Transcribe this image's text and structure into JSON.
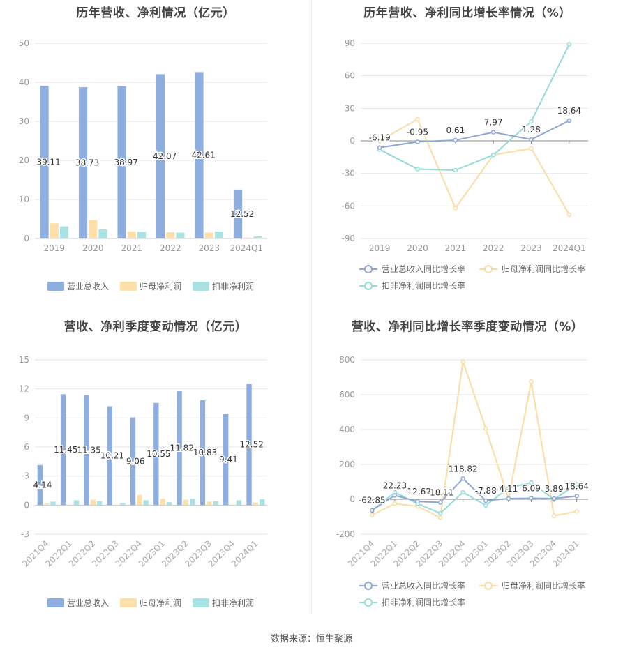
{
  "footer": "数据来源：恒生聚源",
  "legend_bars": [
    "营业总收入",
    "归母净利润",
    "扣非净利润"
  ],
  "legend_lines": [
    "营业总收入同比增长率",
    "归母净利润同比增长率",
    "扣非净利润同比增长率"
  ],
  "colors": {
    "revenue": "#8eaedf",
    "net_profit": "#fddfaa",
    "deducted": "#a8e2e2",
    "rev_line": "#8ea6d6",
    "np_line": "#fbdca2",
    "ded_line": "#93dcd9"
  },
  "chart_data": [
    {
      "type": "bar",
      "title": "历年营收、净利情况（亿元）",
      "categories": [
        "2019",
        "2020",
        "2021",
        "2022",
        "2023",
        "2024Q1"
      ],
      "ylim": [
        0,
        50
      ],
      "yticks": [
        0,
        10,
        20,
        30,
        40,
        50
      ],
      "series": [
        {
          "name": "营业总收入",
          "values": [
            39.11,
            38.73,
            38.97,
            42.07,
            42.61,
            12.52
          ],
          "labels": [
            "39.11",
            "38.73",
            "38.97",
            "42.07",
            "42.61",
            "12.52"
          ]
        },
        {
          "name": "归母净利润",
          "values": [
            3.9,
            4.7,
            1.8,
            1.6,
            1.5,
            0.25
          ]
        },
        {
          "name": "扣非净利润",
          "values": [
            3.1,
            2.3,
            1.7,
            1.5,
            1.8,
            0.55
          ]
        }
      ]
    },
    {
      "type": "line",
      "title": "历年营收、净利同比增长率情况（%）",
      "categories": [
        "2019",
        "2020",
        "2021",
        "2022",
        "2023",
        "2024Q1"
      ],
      "ylim": [
        -90,
        90
      ],
      "yticks": [
        -90,
        -60,
        -30,
        0,
        30,
        60,
        90
      ],
      "series": [
        {
          "name": "营业总收入同比增长率",
          "values": [
            -6.19,
            -0.95,
            0.61,
            7.97,
            1.28,
            18.64
          ],
          "labels": [
            "-6.19",
            "-0.95",
            "0.61",
            "7.97",
            "1.28",
            "18.64"
          ]
        },
        {
          "name": "归母净利润同比增长率",
          "values": [
            0,
            20,
            -62,
            -13,
            -7,
            -68
          ]
        },
        {
          "name": "扣非净利润同比增长率",
          "values": [
            -8,
            -26,
            -27,
            -13,
            18,
            89
          ]
        }
      ]
    },
    {
      "type": "bar",
      "title": "营收、净利季度变动情况（亿元）",
      "categories": [
        "2021Q4",
        "2022Q1",
        "2022Q2",
        "2022Q3",
        "2022Q4",
        "2023Q1",
        "2023Q2",
        "2023Q3",
        "2023Q4",
        "2024Q1"
      ],
      "ylim": [
        -3,
        15
      ],
      "yticks": [
        -3,
        0,
        3,
        6,
        9,
        12,
        15
      ],
      "series": [
        {
          "name": "营业总收入",
          "values": [
            4.14,
            11.45,
            11.35,
            10.21,
            9.06,
            10.55,
            11.82,
            10.83,
            9.41,
            12.52
          ],
          "labels": [
            "4.14",
            "11.45",
            "11.35",
            "10.21",
            "9.06",
            "10.55",
            "11.82",
            "10.83",
            "9.41",
            "12.52"
          ]
        },
        {
          "name": "归母净利润",
          "values": [
            0.15,
            0.05,
            0.55,
            0.05,
            1.05,
            0.65,
            0.55,
            0.35,
            0.05,
            0.25
          ]
        },
        {
          "name": "扣非净利润",
          "values": [
            0.35,
            0.5,
            0.4,
            0.2,
            0.5,
            0.3,
            0.65,
            0.4,
            0.5,
            0.6
          ]
        }
      ]
    },
    {
      "type": "line",
      "title": "营收、净利同比增长率季度变动情况（%）",
      "categories": [
        "2021Q4",
        "2022Q1",
        "2022Q2",
        "2022Q3",
        "2022Q4",
        "2023Q1",
        "2023Q2",
        "2023Q3",
        "2023Q4",
        "2024Q1"
      ],
      "ylim": [
        -200,
        800
      ],
      "yticks": [
        -200,
        0,
        200,
        400,
        600,
        800
      ],
      "series": [
        {
          "name": "营业总收入同比增长率",
          "values": [
            -62.85,
            22.23,
            -12.62,
            -18.11,
            118.82,
            -7.88,
            4.11,
            6.09,
            3.89,
            18.64
          ],
          "labels": [
            "-62.85",
            "22.23",
            "-12.62",
            "-18.11",
            "118.82",
            "-7.88",
            "4.11",
            "6.09",
            "3.89",
            "18.64"
          ]
        },
        {
          "name": "归母净利润同比增长率",
          "values": [
            -90,
            -25,
            -40,
            -105,
            790,
            405,
            5,
            675,
            -95,
            -70
          ]
        },
        {
          "name": "扣非净利润同比增长率",
          "values": [
            -65,
            40,
            -25,
            -80,
            40,
            -35,
            65,
            95,
            0,
            85
          ]
        }
      ]
    }
  ]
}
